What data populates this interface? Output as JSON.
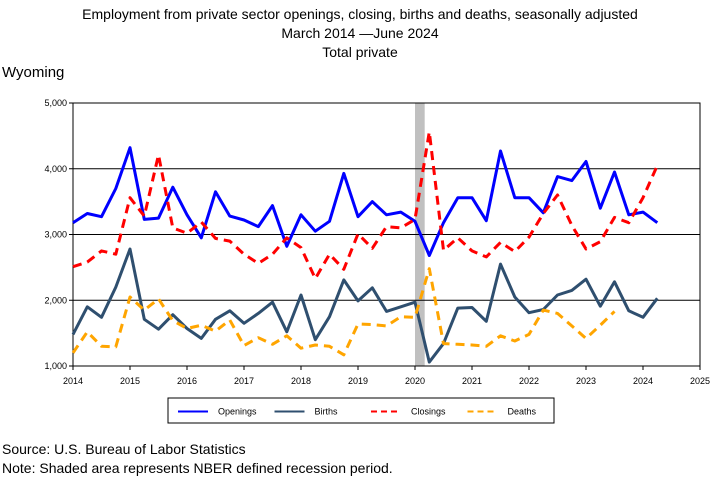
{
  "title_lines": [
    "Employment from private sector openings, closing, births and deaths, seasonally adjusted",
    "March 2014 —June 2024",
    "Total private"
  ],
  "region_label": "Wyoming",
  "footnotes": {
    "source": "Source: U.S. Bureau of Labor Statistics",
    "note": "Note: Shaded area represents NBER defined recession period."
  },
  "colors": {
    "openings": "#0000ff",
    "births": "#2f4f6f",
    "closings": "#ff0000",
    "deaths": "#ffa500",
    "recession": "#c0c0c0"
  },
  "chart_data": {
    "type": "line",
    "title": "Employment from private sector openings, closing, births and deaths, seasonally adjusted",
    "xlabel": "",
    "ylabel": "",
    "xlim": [
      2014,
      2025
    ],
    "ylim": [
      1000,
      5000
    ],
    "x_ticks": [
      "2014",
      "2015",
      "2016",
      "2017",
      "2018",
      "2019",
      "2020",
      "2021",
      "2022",
      "2023",
      "2024",
      "2025"
    ],
    "y_ticks": [
      "1,000",
      "2,000",
      "3,000",
      "4,000",
      "5,000"
    ],
    "grid": "horizontal",
    "legend_position": "bottom",
    "recession": {
      "start": 2020.0,
      "end": 2020.17
    },
    "x": [
      2014.0,
      2014.25,
      2014.5,
      2014.75,
      2015.0,
      2015.25,
      2015.5,
      2015.75,
      2016.0,
      2016.25,
      2016.5,
      2016.75,
      2017.0,
      2017.25,
      2017.5,
      2017.75,
      2018.0,
      2018.25,
      2018.5,
      2018.75,
      2019.0,
      2019.25,
      2019.5,
      2019.75,
      2020.0,
      2020.25,
      2020.5,
      2020.75,
      2021.0,
      2021.25,
      2021.5,
      2021.75,
      2022.0,
      2022.25,
      2022.5,
      2022.75,
      2023.0,
      2023.25,
      2023.5,
      2023.75,
      2024.0,
      2024.25
    ],
    "series": [
      {
        "name": "Openings",
        "style": "solid",
        "values": [
          3180,
          3320,
          3270,
          3700,
          4320,
          3230,
          3250,
          3720,
          3300,
          2950,
          3650,
          3280,
          3220,
          3120,
          3440,
          2820,
          3300,
          3050,
          3200,
          3930,
          3270,
          3500,
          3300,
          3340,
          3200,
          2680,
          3180,
          3560,
          3560,
          3210,
          4270,
          3560,
          3560,
          3330,
          3880,
          3820,
          4110,
          3400,
          3950,
          3300,
          3340,
          3180
        ]
      },
      {
        "name": "Births",
        "style": "solid",
        "values": [
          1480,
          1900,
          1740,
          2200,
          2780,
          1710,
          1560,
          1780,
          1570,
          1420,
          1710,
          1840,
          1650,
          1800,
          1970,
          1520,
          2080,
          1400,
          1750,
          2310,
          1990,
          2190,
          1830,
          1900,
          1970,
          1060,
          1340,
          1880,
          1890,
          1680,
          2550,
          2050,
          1810,
          1860,
          2080,
          2150,
          2320,
          1910,
          2280,
          1840,
          1740,
          2030
        ]
      },
      {
        "name": "Closings",
        "style": "dashed",
        "values": [
          2510,
          2580,
          2750,
          2700,
          3560,
          3280,
          4210,
          3100,
          3020,
          3190,
          2940,
          2900,
          2700,
          2560,
          2700,
          2950,
          2800,
          2330,
          2700,
          2470,
          3010,
          2790,
          3120,
          3100,
          3230,
          4560,
          2760,
          2950,
          2750,
          2660,
          2880,
          2740,
          2960,
          3320,
          3600,
          3140,
          2780,
          2890,
          3260,
          3180,
          3560,
          4050
        ]
      },
      {
        "name": "Deaths",
        "style": "dashed",
        "values": [
          1200,
          1520,
          1300,
          1290,
          2050,
          1850,
          2020,
          1690,
          1570,
          1620,
          1530,
          1700,
          1310,
          1430,
          1330,
          1460,
          1270,
          1320,
          1300,
          1170,
          1640,
          1630,
          1610,
          1750,
          1740,
          2480,
          1340,
          1330,
          1320,
          1300,
          1460,
          1380,
          1480,
          1850,
          1800,
          1610,
          1420,
          1620,
          1830,
          null,
          null,
          null
        ]
      }
    ]
  }
}
